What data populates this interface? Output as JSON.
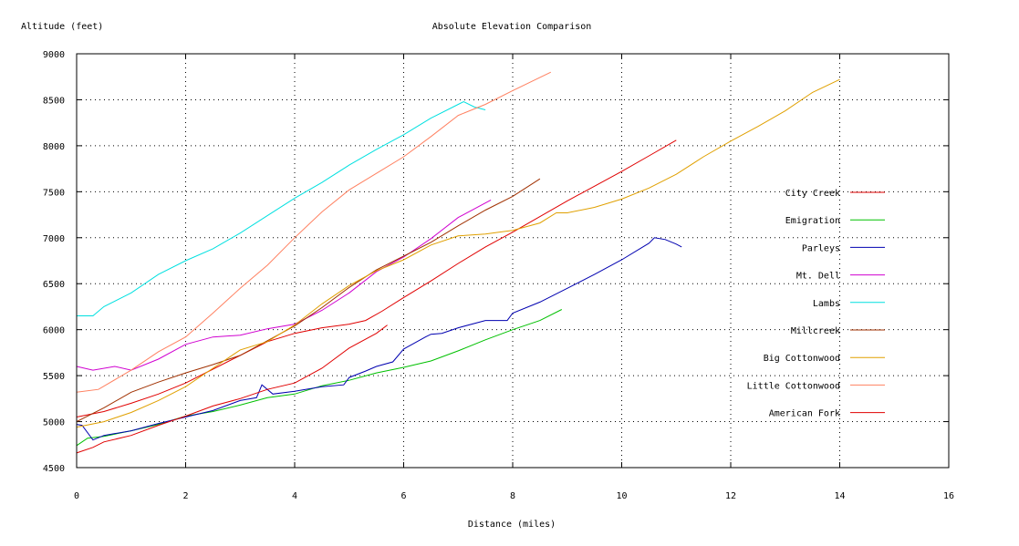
{
  "chart_data": {
    "type": "line",
    "title": "Absolute Elevation Comparison",
    "xlabel": "Distance (miles)",
    "ylabel": "Altitude (feet)",
    "xlim": [
      0,
      16
    ],
    "ylim": [
      4500,
      9000
    ],
    "xticks": [
      0,
      2,
      4,
      6,
      8,
      10,
      12,
      14,
      16
    ],
    "yticks": [
      4500,
      5000,
      5500,
      6000,
      6500,
      7000,
      7500,
      8000,
      8500,
      9000
    ],
    "grid": true,
    "legend_position": "right",
    "series": [
      {
        "name": "City Creek",
        "color": "#e00000",
        "x": [
          0,
          0.5,
          1,
          1.5,
          2,
          2.5,
          3,
          3.5,
          4,
          4.5,
          5,
          5.3,
          5.6,
          6,
          6.5,
          7,
          7.5,
          8,
          8.5,
          9,
          9.5,
          10,
          10.5,
          11
        ],
        "y": [
          5050,
          5110,
          5200,
          5300,
          5420,
          5570,
          5720,
          5870,
          5960,
          6020,
          6060,
          6100,
          6200,
          6350,
          6530,
          6720,
          6900,
          7060,
          7230,
          7400,
          7560,
          7720,
          7890,
          8060
        ]
      },
      {
        "name": "Emigration",
        "color": "#00c000",
        "x": [
          0,
          0.2,
          0.5,
          1,
          1.5,
          2,
          2.5,
          3,
          3.5,
          4,
          4.5,
          5,
          5.5,
          6,
          6.5,
          7,
          7.5,
          8,
          8.5,
          8.9
        ],
        "y": [
          4740,
          4820,
          4840,
          4900,
          4970,
          5060,
          5110,
          5180,
          5260,
          5300,
          5390,
          5450,
          5530,
          5590,
          5660,
          5770,
          5890,
          6000,
          6100,
          6220
        ]
      },
      {
        "name": "Parleys",
        "color": "#0000b0",
        "x": [
          0,
          0.1,
          0.3,
          0.5,
          1,
          1.5,
          2,
          2.5,
          3,
          3.3,
          3.4,
          3.6,
          4,
          4.5,
          4.9,
          5,
          5.3,
          5.5,
          5.8,
          6,
          6.4,
          6.5,
          6.7,
          7,
          7.5,
          7.9,
          8,
          8.5,
          9,
          9.5,
          10,
          10.5,
          10.6,
          10.8,
          11,
          11.1
        ],
        "y": [
          4970,
          4960,
          4800,
          4850,
          4900,
          4980,
          5050,
          5120,
          5230,
          5260,
          5400,
          5300,
          5330,
          5380,
          5400,
          5480,
          5550,
          5600,
          5650,
          5790,
          5920,
          5950,
          5960,
          6020,
          6100,
          6100,
          6180,
          6300,
          6450,
          6600,
          6760,
          6940,
          7000,
          6980,
          6930,
          6900
        ]
      },
      {
        "name": "Mt. Dell",
        "color": "#d000d0",
        "x": [
          0,
          0.3,
          0.7,
          1,
          1.5,
          2,
          2.5,
          3,
          3.5,
          4,
          4.5,
          5,
          5.5,
          6,
          6.5,
          7,
          7.6
        ],
        "y": [
          5600,
          5560,
          5600,
          5560,
          5680,
          5840,
          5920,
          5940,
          6010,
          6060,
          6210,
          6400,
          6630,
          6790,
          6990,
          7220,
          7410
        ]
      },
      {
        "name": "Lambs",
        "color": "#00e0e0",
        "x": [
          0,
          0.3,
          0.5,
          1,
          1.5,
          2,
          2.5,
          3,
          3.5,
          4,
          4.5,
          5,
          5.5,
          6,
          6.5,
          7,
          7.1,
          7.3,
          7.5
        ],
        "y": [
          6150,
          6150,
          6250,
          6400,
          6600,
          6750,
          6880,
          7050,
          7240,
          7430,
          7600,
          7790,
          7960,
          8120,
          8300,
          8450,
          8480,
          8420,
          8390
        ]
      },
      {
        "name": "Millcreek",
        "color": "#a03000",
        "x": [
          0,
          0.5,
          1,
          1.5,
          2,
          2.5,
          3,
          3.5,
          4,
          4.5,
          5,
          5.5,
          6,
          6.5,
          7,
          7.5,
          8,
          8.5
        ],
        "y": [
          5000,
          5150,
          5320,
          5430,
          5530,
          5620,
          5720,
          5880,
          6040,
          6240,
          6460,
          6650,
          6800,
          6950,
          7130,
          7300,
          7450,
          7640
        ]
      },
      {
        "name": "Big Cottonwood",
        "color": "#e0a000",
        "x": [
          0,
          0.5,
          1,
          1.5,
          2,
          2.5,
          3,
          3.5,
          4,
          4.5,
          5,
          5.5,
          6,
          6.5,
          7,
          7.5,
          8,
          8.5,
          8.8,
          9,
          9.5,
          10,
          10.5,
          11,
          11.5,
          12,
          12.5,
          13,
          13.5,
          14
        ],
        "y": [
          4940,
          5000,
          5100,
          5230,
          5380,
          5580,
          5780,
          5870,
          6050,
          6280,
          6480,
          6640,
          6760,
          6920,
          7020,
          7040,
          7080,
          7160,
          7270,
          7270,
          7330,
          7420,
          7540,
          7690,
          7880,
          8050,
          8210,
          8380,
          8580,
          8720
        ]
      },
      {
        "name": "Little Cottonwood",
        "color": "#ff8060",
        "x": [
          0,
          0.4,
          1,
          1.5,
          2,
          2.5,
          3,
          3.5,
          4,
          4.5,
          5,
          5.5,
          6,
          6.5,
          7,
          7.5,
          8,
          8.7
        ],
        "y": [
          5320,
          5350,
          5560,
          5760,
          5920,
          6180,
          6450,
          6700,
          7000,
          7280,
          7520,
          7700,
          7880,
          8100,
          8330,
          8450,
          8600,
          8800
        ]
      },
      {
        "name": "American Fork",
        "color": "#e00000",
        "x": [
          0,
          0.3,
          0.5,
          1,
          1.5,
          2,
          2.5,
          3,
          3.5,
          4,
          4.5,
          5,
          5.5,
          5.7
        ],
        "y": [
          4660,
          4720,
          4780,
          4850,
          4960,
          5060,
          5170,
          5250,
          5350,
          5420,
          5580,
          5800,
          5960,
          6050
        ]
      }
    ]
  }
}
